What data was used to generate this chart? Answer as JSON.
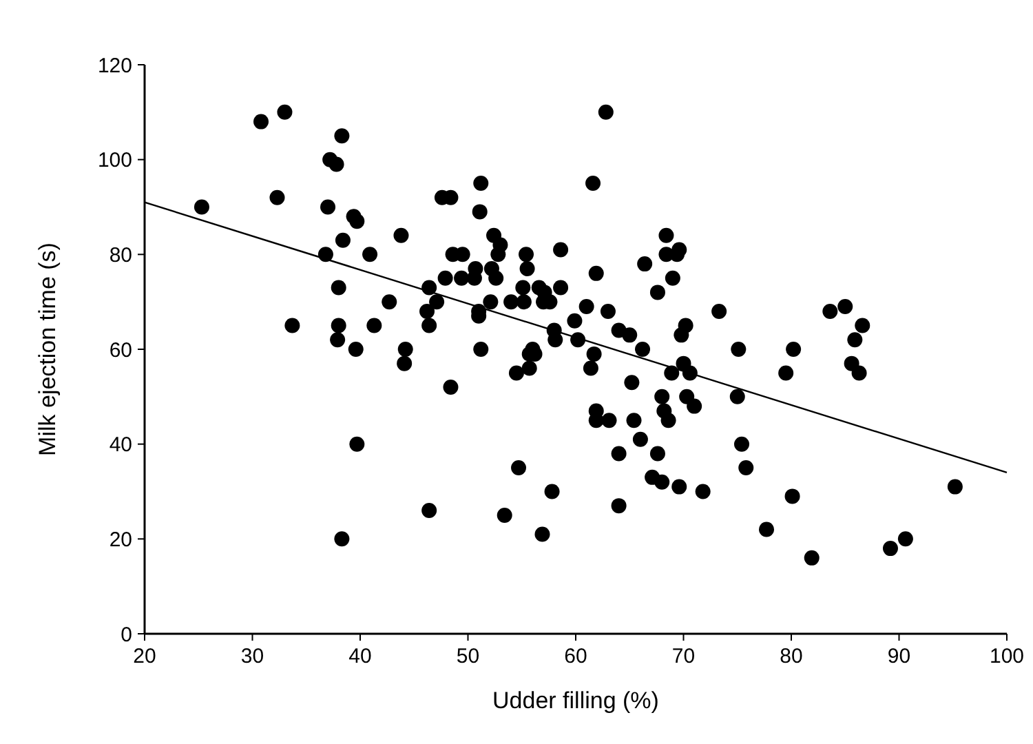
{
  "chart_data": {
    "type": "scatter",
    "xlabel": "Udder filling (%)",
    "ylabel": "Milk ejection time (s)",
    "xlim": [
      20,
      100
    ],
    "ylim": [
      0,
      120
    ],
    "xticks": [
      20,
      30,
      40,
      50,
      60,
      70,
      80,
      90,
      100
    ],
    "yticks": [
      0,
      20,
      40,
      60,
      80,
      100,
      120
    ],
    "grid": false,
    "marker": "circle",
    "series": [
      {
        "color": "#000000",
        "x": [
          25.3,
          30.8,
          33,
          32.3,
          33.7,
          36.8,
          37,
          37.2,
          37.8,
          38.3,
          38,
          38,
          37.9,
          38.4,
          39.4,
          39.7,
          39.6,
          39.7,
          38.3,
          40.9,
          41.3,
          42.7,
          43.8,
          44.1,
          44.2,
          46.2,
          46.4,
          46.4,
          46.4,
          47.1,
          47.6,
          48.4,
          47.9,
          48.4,
          48.6,
          49.5,
          49.4,
          50.6,
          50.7,
          51,
          51,
          51.1,
          51.2,
          51.2,
          52.2,
          52.1,
          52.4,
          52.8,
          52.6,
          53,
          53.4,
          54,
          54.5,
          54.7,
          55.1,
          55.2,
          55.4,
          55.5,
          55.7,
          55.7,
          56,
          56.2,
          56.6,
          56.9,
          57.1,
          57,
          57.6,
          57.8,
          58,
          58.1,
          58.6,
          58.6,
          59.9,
          60.2,
          61,
          61.4,
          61.6,
          61.9,
          61.7,
          61.9,
          61.9,
          62.8,
          63.1,
          63,
          64,
          64,
          64,
          65,
          65.2,
          65.4,
          66.2,
          66,
          66.4,
          67.1,
          67.6,
          67.6,
          68,
          68,
          68.2,
          68.4,
          68.4,
          68.6,
          68.9,
          69,
          69.4,
          69.6,
          69.6,
          69.8,
          70,
          70.2,
          70.3,
          70.6,
          71,
          71.8,
          73.3,
          75.1,
          75,
          75.4,
          75.8,
          77.7,
          79.5,
          80.2,
          80.1,
          81.9,
          83.6,
          85,
          85.6,
          85.9,
          86.3,
          86.6,
          89.2,
          90.6,
          95.2
        ],
        "values": [
          90,
          108,
          110,
          92,
          65,
          80,
          90,
          100,
          99,
          105,
          73,
          65,
          62,
          83,
          88,
          87,
          60,
          40,
          20,
          80,
          65,
          70,
          84,
          57,
          60,
          68,
          73,
          65,
          26,
          70,
          92,
          92,
          75,
          52,
          80,
          80,
          75,
          75,
          77,
          67,
          68,
          89,
          95,
          60,
          77,
          70,
          84,
          80,
          75,
          82,
          25,
          70,
          55,
          35,
          73,
          70,
          80,
          77,
          56,
          59,
          60,
          59,
          73,
          21,
          72,
          70,
          70,
          30,
          64,
          62,
          81,
          73,
          66,
          62,
          69,
          56,
          95,
          76,
          59,
          47,
          45,
          110,
          45,
          68,
          64,
          38,
          27,
          63,
          53,
          45,
          60,
          41,
          78,
          33,
          72,
          38,
          32,
          50,
          47,
          84,
          80,
          45,
          55,
          75,
          80,
          81,
          31,
          63,
          57,
          65,
          50,
          55,
          48,
          30,
          68,
          60,
          50,
          40,
          35,
          22,
          55,
          60,
          29,
          16,
          68,
          69,
          57,
          62,
          55,
          65,
          18,
          20,
          31
        ]
      },
      {
        "type": "line",
        "color": "#000000",
        "x": [
          20,
          100
        ],
        "values": [
          91,
          34
        ],
        "marker": "none"
      }
    ]
  }
}
